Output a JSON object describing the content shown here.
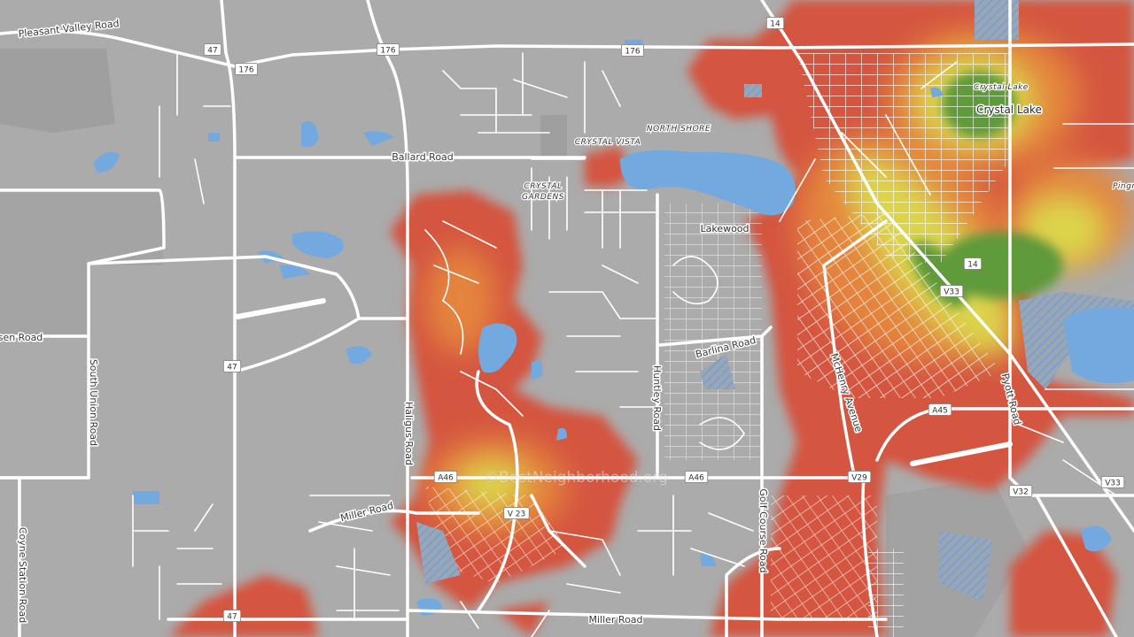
{
  "map": {
    "watermark": "©BestNeighborhood.org",
    "place_labels": [
      "Crystal Lake",
      "Crystal Lake",
      "Lakewood",
      "NORTH SHORE",
      "CRYSTAL VISTA",
      "CRYSTAL",
      "GARDENS",
      "Pingr"
    ],
    "road_labels": [
      "Pleasant Valley Road",
      "Ballard Road",
      "sen Road",
      "South Union Road",
      "Coyne Station Road",
      "Haligus Road",
      "Miller Road",
      "Miller Road",
      "Huntley Road",
      "Barlina Road",
      "Golf Course Road",
      "McHenry Avenue",
      "Pyott Road"
    ],
    "route_shields": [
      "47",
      "176",
      "176",
      "176",
      "14",
      "14",
      "47",
      "47",
      "A46",
      "A46",
      "V 23",
      "V29",
      "A45",
      "V33",
      "V32",
      "V33"
    ]
  }
}
